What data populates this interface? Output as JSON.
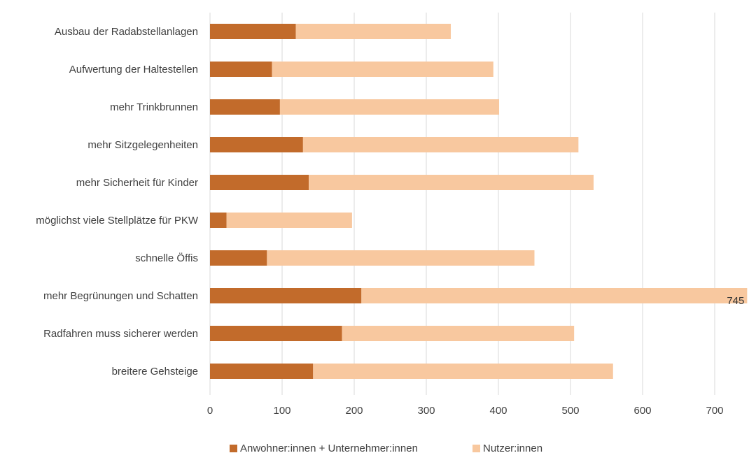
{
  "chart_data": {
    "type": "bar",
    "orientation": "horizontal",
    "stacked": true,
    "categories": [
      "Ausbau der Radabstellanlagen",
      "Aufwertung der Haltestellen",
      "mehr Trinkbrunnen",
      "mehr Sitzgelegenheiten",
      "mehr Sicherheit für Kinder",
      "möglichst viele Stellplätze für PKW",
      "schnelle Öffis",
      "mehr Begrünungen und Schatten",
      "Radfahren muss sicherer werden",
      "breitere Gehsteige"
    ],
    "series": [
      {
        "name": "Anwohner:innen + Unternehmer:innen",
        "color": "#c26b2b",
        "values": [
          119,
          86,
          97,
          129,
          137,
          23,
          79,
          210,
          183,
          143
        ]
      },
      {
        "name": "Nutzer:innen",
        "color": "#f8c89f",
        "values": [
          215,
          307,
          304,
          382,
          395,
          174,
          371,
          535,
          322,
          416
        ]
      }
    ],
    "xlim": [
      0,
      750
    ],
    "xticks": [
      0,
      100,
      200,
      300,
      400,
      500,
      600,
      700
    ],
    "data_labels": [
      {
        "category_index": 7,
        "text": "745"
      }
    ],
    "grid": "vertical",
    "legend": "bottom-center",
    "title": "",
    "xlabel": "",
    "ylabel": ""
  }
}
